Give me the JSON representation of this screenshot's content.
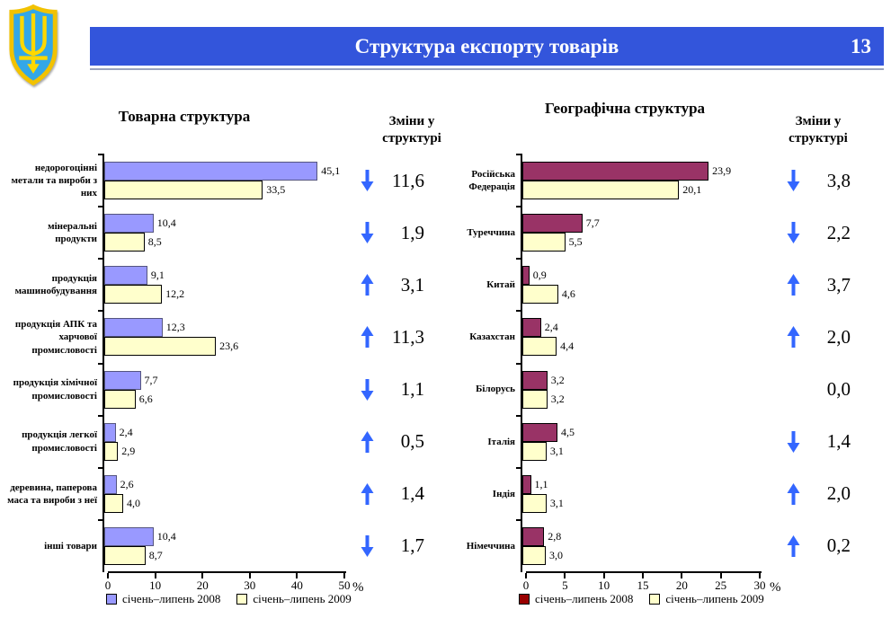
{
  "header": {
    "title": "Структура експорту товарів",
    "page_number": "13"
  },
  "colors": {
    "header_bg": "#3355db",
    "header_text": "#ffffff",
    "underline": "#9aa3bd",
    "arrow": "#3366ff",
    "shield_field": "#33a7e8",
    "shield_border": "#f2c200",
    "trident": "#ffd800"
  },
  "chart_data": [
    {
      "type": "bar",
      "orientation": "horizontal",
      "title": "Товарна структура",
      "changes_title": "Зміни у структурі",
      "axis_unit": "%",
      "xlim": [
        0,
        50
      ],
      "xticks": [
        0,
        10,
        20,
        30,
        40,
        50
      ],
      "grid": false,
      "legend_position": "bottom",
      "categories": [
        "недорогоцінні метали та вироби з них",
        "мінеральні продукти",
        "продукція машинобудування",
        "продукція АПК та харчової промисловості",
        "продукція хімічної промисловості",
        "продукція легкої промисловості",
        "деревина, паперова маса та вироби з неї",
        "інші товари"
      ],
      "series": [
        {
          "name": "січень–липень 2008",
          "color": "#9999ff",
          "border": "#55557f",
          "legend_color": "#9999ff",
          "values": [
            45.1,
            10.4,
            9.1,
            12.3,
            7.7,
            2.4,
            2.6,
            10.4
          ]
        },
        {
          "name": "січень–липень 2009",
          "color": "#ffffcc",
          "border": "#000000",
          "legend_color": "#ffffcc",
          "values": [
            33.5,
            8.5,
            12.2,
            23.6,
            6.6,
            2.9,
            4.0,
            8.7
          ]
        }
      ],
      "changes": [
        {
          "dir": "down",
          "value": 11.6
        },
        {
          "dir": "down",
          "value": 1.9
        },
        {
          "dir": "up",
          "value": 3.1
        },
        {
          "dir": "up",
          "value": 11.3
        },
        {
          "dir": "down",
          "value": 1.1
        },
        {
          "dir": "up",
          "value": 0.5
        },
        {
          "dir": "up",
          "value": 1.4
        },
        {
          "dir": "down",
          "value": 1.7
        }
      ]
    },
    {
      "type": "bar",
      "orientation": "horizontal",
      "title": "Географічна структура",
      "changes_title": "Зміни у структурі",
      "axis_unit": "%",
      "xlim": [
        0,
        30
      ],
      "xticks": [
        0,
        5,
        10,
        15,
        20,
        25,
        30
      ],
      "grid": false,
      "legend_position": "bottom",
      "categories": [
        "Російська Федерація",
        "Туреччина",
        "Китай",
        "Казахстан",
        "Білорусь",
        "Італія",
        "Індія",
        "Німеччина"
      ],
      "series": [
        {
          "name": "січень–липень 2008",
          "color": "#993366",
          "border": "#000000",
          "legend_color": "#990000",
          "values": [
            23.9,
            7.7,
            0.9,
            2.4,
            3.2,
            4.5,
            1.1,
            2.8
          ]
        },
        {
          "name": "січень–липень 2009",
          "color": "#ffffcc",
          "border": "#000000",
          "legend_color": "#ffffcc",
          "values": [
            20.1,
            5.5,
            4.6,
            4.4,
            3.2,
            3.1,
            3.1,
            3.0
          ]
        }
      ],
      "changes": [
        {
          "dir": "down",
          "value": 3.8
        },
        {
          "dir": "down",
          "value": 2.2
        },
        {
          "dir": "up",
          "value": 3.7
        },
        {
          "dir": "up",
          "value": 2.0
        },
        {
          "dir": "none",
          "value": 0.0
        },
        {
          "dir": "down",
          "value": 1.4
        },
        {
          "dir": "up",
          "value": 2.0
        },
        {
          "dir": "up",
          "value": 0.2
        }
      ]
    }
  ]
}
